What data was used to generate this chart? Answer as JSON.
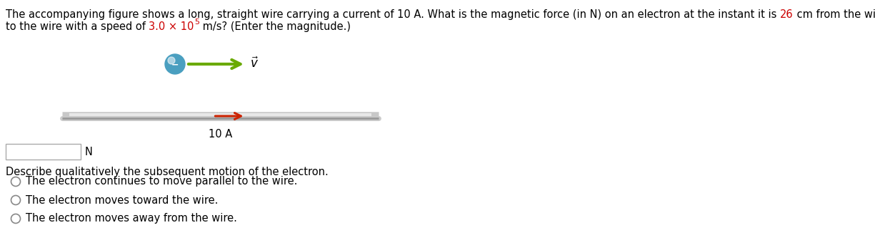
{
  "prefix1": "The accompanying figure shows a long, straight wire carrying a current of 10 A. What is the magnetic force (in N) on an electron at the instant it is ",
  "red1": "26",
  "suffix1": " cm from the wire, traveling parallel",
  "prefix2": "to the wire with a speed of ",
  "red2": "3.0 × 10",
  "superscript": "5",
  "suffix2": " m/s? (Enter the magnitude.)",
  "highlight_color": "#cc0000",
  "text_color": "#000000",
  "electron_color_top": "#7ec8e3",
  "electron_color": "#4a9fc0",
  "arrow_green": "#6aaa00",
  "wire_color_light": "#c8c8c8",
  "wire_color_dark": "#999999",
  "wire_arrow_color": "#cc2200",
  "wire_label": "10 A",
  "radio_options": [
    "The electron continues to move parallel to the wire.",
    "The electron moves toward the wire.",
    "The electron moves away from the wire."
  ],
  "describe_text": "Describe qualitatively the subsequent motion of the electron.",
  "bg_color": "#ffffff",
  "font_size": 10.5,
  "font_size_small": 8.0
}
